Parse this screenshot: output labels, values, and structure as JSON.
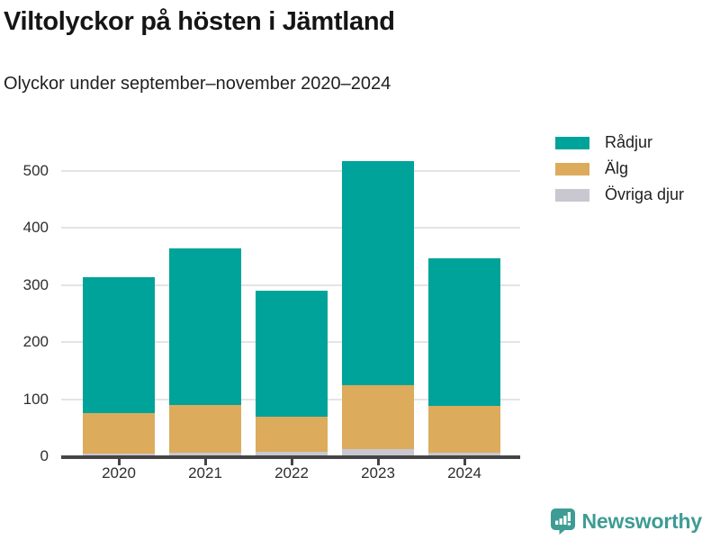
{
  "title": "Viltolyckor på hösten i Jämtland",
  "subtitle": "Olyckor under september–november 2020–2024",
  "brand": {
    "name": "Newsworthy",
    "color": "#3e9c94"
  },
  "colors": {
    "axis": "#454545",
    "grid": "#e4e4e4",
    "text": "#1f1f1f"
  },
  "chart_data": {
    "type": "bar",
    "stacked": true,
    "title": "Viltolyckor på hösten i Jämtland",
    "subtitle": "Olyckor under september–november 2020–2024",
    "categories": [
      "2020",
      "2021",
      "2022",
      "2023",
      "2024"
    ],
    "series": [
      {
        "name": "Rådjur",
        "color": "#00a39a",
        "values": [
          239,
          274,
          220,
          392,
          259
        ]
      },
      {
        "name": "Älg",
        "color": "#dcab5c",
        "values": [
          70,
          83,
          62,
          113,
          81
        ]
      },
      {
        "name": "Övriga djur",
        "color": "#c9c7d0",
        "values": [
          5,
          7,
          8,
          12,
          7
        ]
      }
    ],
    "stack_order_bottom_to_top": [
      "Övriga djur",
      "Älg",
      "Rådjur"
    ],
    "totals": [
      314,
      364,
      290,
      517,
      347
    ],
    "xlabel": "",
    "ylabel": "",
    "yticks": [
      0,
      100,
      200,
      300,
      400,
      500
    ],
    "ylim": [
      0,
      530
    ],
    "grid": true,
    "legend_position": "top-right"
  }
}
